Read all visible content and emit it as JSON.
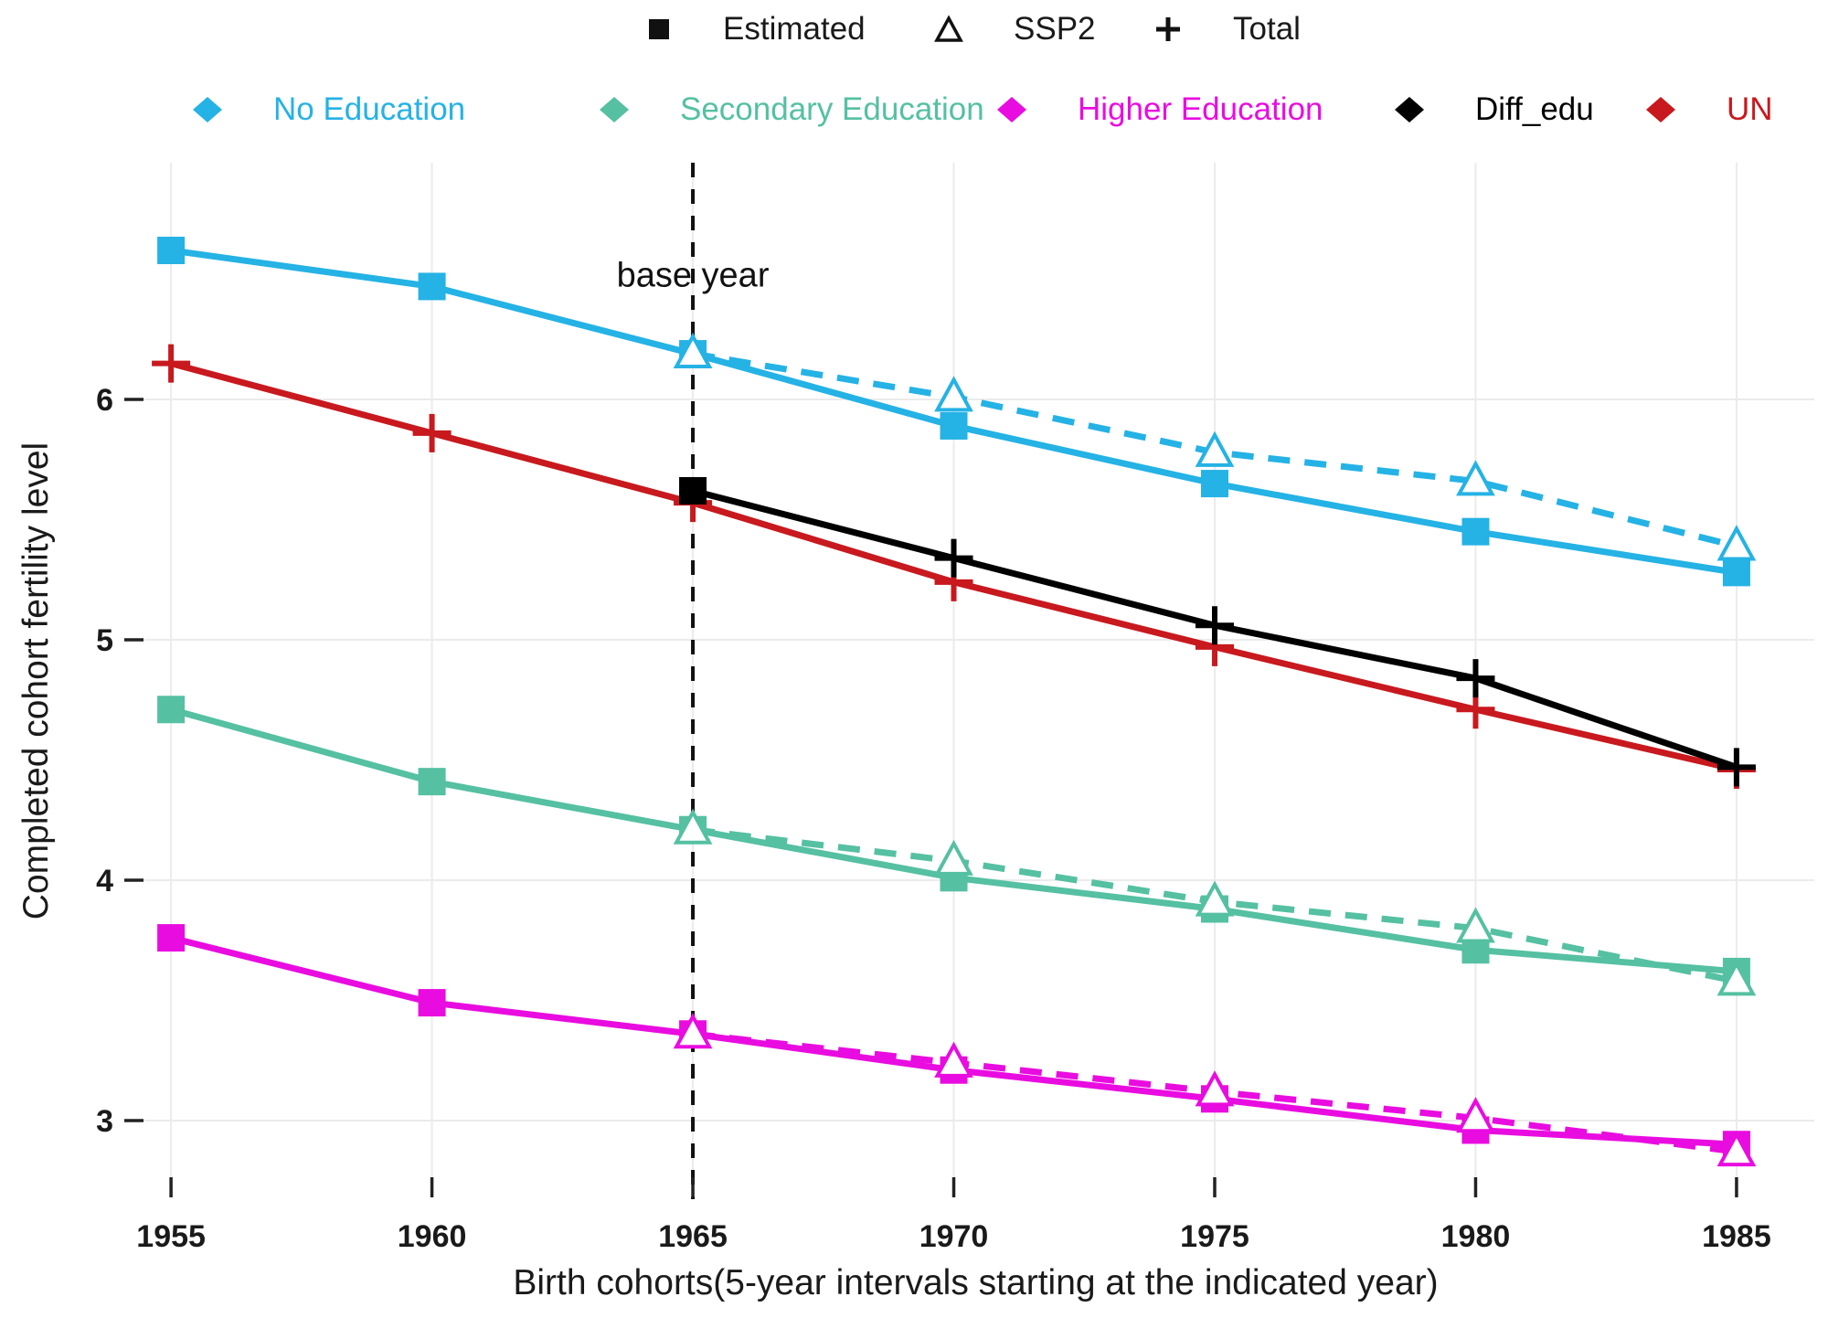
{
  "figure": {
    "background": "#FFFFFF",
    "text_color": "#1A1A1A",
    "grid_color": "#EBEBEB"
  },
  "chart_data": {
    "type": "line",
    "title": "",
    "xlabel": "Birth cohorts(5-year intervals starting at the indicated year)",
    "ylabel": "Completed cohort fertility level",
    "x_ticks": [
      1955,
      1960,
      1965,
      1970,
      1975,
      1980,
      1985
    ],
    "y_ticks": [
      3,
      4,
      5,
      6
    ],
    "xlim": [
      1954.35,
      1986.49
    ],
    "ylim": [
      2.764,
      6.985
    ],
    "grid": true,
    "legend_position": "top",
    "annotation": {
      "label": "base year",
      "x": 1965,
      "y": 6.47,
      "line_style": "dashed-vertical"
    },
    "shape_legend": [
      {
        "label": "Estimated",
        "marker": "square"
      },
      {
        "label": "SSP2",
        "marker": "triangle"
      },
      {
        "label": "Total",
        "marker": "plus"
      }
    ],
    "color_legend": [
      {
        "label": "No Education",
        "color": "#25B2E5"
      },
      {
        "label": "Secondary Education",
        "color": "#55C0A2"
      },
      {
        "label": "Higher Education",
        "color": "#E90CE0"
      },
      {
        "label": "Diff_edu",
        "color": "#000000"
      },
      {
        "label": "UN",
        "color": "#C8191E"
      }
    ],
    "series": [
      {
        "id": "no-education-estimated",
        "name": "No Education (Estimated)",
        "color": "#25B2E5",
        "line": "solid",
        "marker": "square",
        "x": [
          1955,
          1960,
          1965,
          1970,
          1975,
          1980,
          1985
        ],
        "values": [
          6.62,
          6.47,
          6.19,
          5.89,
          5.65,
          5.45,
          5.28
        ]
      },
      {
        "id": "no-education-ssp2",
        "name": "No Education (SSP2)",
        "color": "#25B2E5",
        "line": "dashed",
        "marker": "triangle",
        "x": [
          1965,
          1970,
          1975,
          1980,
          1985
        ],
        "values": [
          6.19,
          6.01,
          5.78,
          5.66,
          5.39
        ]
      },
      {
        "id": "secondary-education-estimated",
        "name": "Secondary Education (Estimated)",
        "color": "#55C0A2",
        "line": "solid",
        "marker": "square",
        "x": [
          1955,
          1960,
          1965,
          1970,
          1975,
          1980,
          1985
        ],
        "values": [
          4.71,
          4.41,
          4.21,
          4.01,
          3.88,
          3.71,
          3.62
        ]
      },
      {
        "id": "secondary-education-ssp2",
        "name": "Secondary Education (SSP2)",
        "color": "#55C0A2",
        "line": "dashed",
        "marker": "triangle",
        "x": [
          1965,
          1970,
          1975,
          1980,
          1985
        ],
        "values": [
          4.21,
          4.08,
          3.91,
          3.8,
          3.58
        ]
      },
      {
        "id": "higher-education-estimated",
        "name": "Higher Education (Estimated)",
        "color": "#E90CE0",
        "line": "solid",
        "marker": "square",
        "x": [
          1955,
          1960,
          1965,
          1970,
          1975,
          1980,
          1985
        ],
        "values": [
          3.76,
          3.49,
          3.36,
          3.21,
          3.09,
          2.96,
          2.9
        ]
      },
      {
        "id": "higher-education-ssp2",
        "name": "Higher Education (SSP2)",
        "color": "#E90CE0",
        "line": "dashed",
        "marker": "triangle",
        "x": [
          1965,
          1970,
          1975,
          1980,
          1985
        ],
        "values": [
          3.36,
          3.24,
          3.12,
          3.01,
          2.87
        ]
      },
      {
        "id": "un-total",
        "name": "UN (Total)",
        "color": "#C8191E",
        "line": "solid",
        "marker": "plus",
        "x": [
          1955,
          1960,
          1965,
          1970,
          1975,
          1980,
          1985
        ],
        "values": [
          6.15,
          5.86,
          5.57,
          5.24,
          4.97,
          4.71,
          4.46
        ]
      },
      {
        "id": "diff-edu-total",
        "name": "Diff_edu (Total)",
        "color": "#000000",
        "line": "solid",
        "marker": "plus",
        "marker_first": "square",
        "x": [
          1965,
          1970,
          1975,
          1980,
          1985
        ],
        "values": [
          5.62,
          5.34,
          5.06,
          4.84,
          4.47
        ]
      }
    ]
  }
}
